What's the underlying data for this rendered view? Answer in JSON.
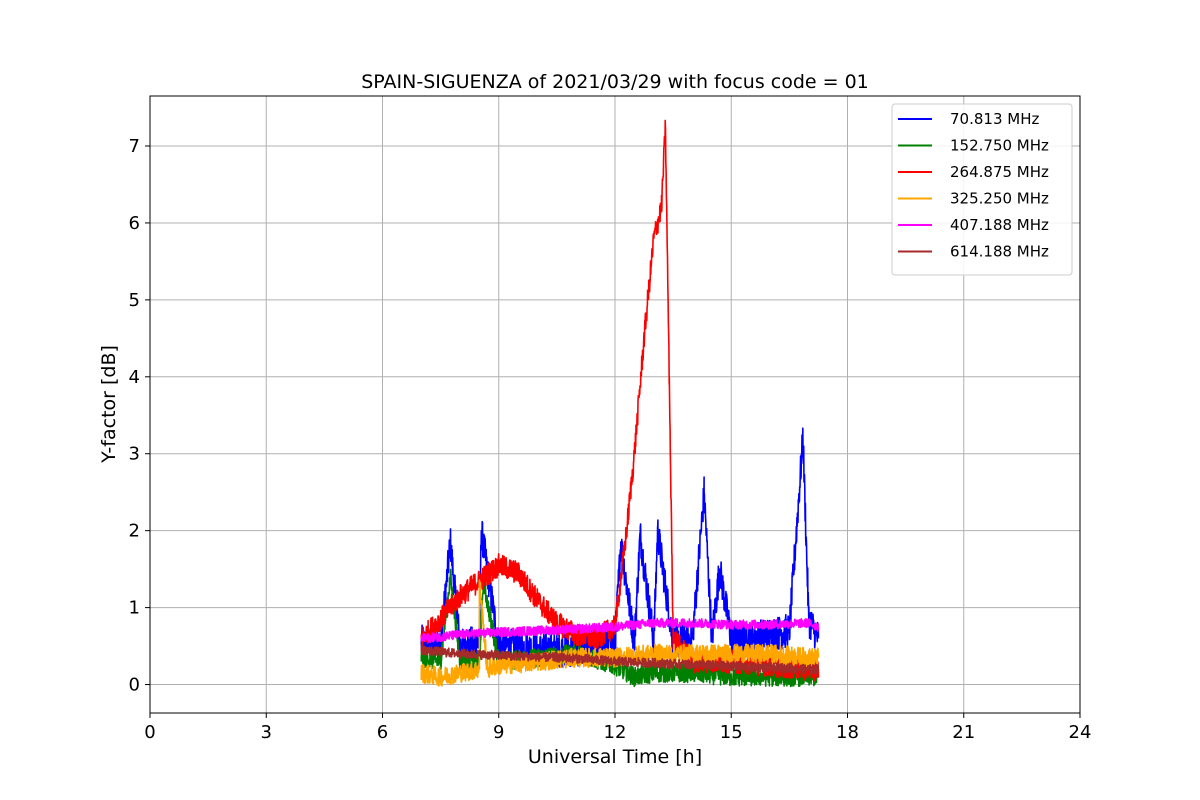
{
  "chart_data": {
    "type": "line",
    "title": "SPAIN-SIGUENZA of 2021/03/29 with focus code = 01",
    "xlabel": "Universal Time [h]",
    "ylabel": "Y-factor [dB]",
    "xlim": [
      0,
      24
    ],
    "ylim": [
      -0.37,
      7.65
    ],
    "xticks": [
      0,
      3,
      6,
      9,
      12,
      15,
      18,
      21,
      24
    ],
    "yticks": [
      0,
      1,
      2,
      3,
      4,
      5,
      6,
      7
    ],
    "grid": true,
    "legend_position": "top-right",
    "x_range_of_data": [
      7.0,
      17.25
    ],
    "series": [
      {
        "name": " 70.813 MHz",
        "color": "#0000ff",
        "points": [
          [
            7.0,
            0.55
          ],
          [
            7.5,
            0.5
          ],
          [
            7.75,
            1.85
          ],
          [
            8.0,
            0.5
          ],
          [
            8.5,
            0.55
          ],
          [
            8.55,
            2.0
          ],
          [
            9.0,
            0.5
          ],
          [
            9.5,
            0.5
          ],
          [
            10.0,
            0.45
          ],
          [
            10.5,
            0.45
          ],
          [
            11.0,
            0.45
          ],
          [
            11.5,
            0.55
          ],
          [
            12.0,
            0.55
          ],
          [
            12.15,
            1.85
          ],
          [
            12.5,
            0.55
          ],
          [
            12.65,
            1.95
          ],
          [
            13.0,
            0.55
          ],
          [
            13.1,
            2.0
          ],
          [
            13.5,
            0.55
          ],
          [
            14.0,
            0.6
          ],
          [
            14.3,
            2.5
          ],
          [
            14.5,
            0.6
          ],
          [
            14.7,
            1.5
          ],
          [
            15.0,
            0.6
          ],
          [
            15.5,
            0.6
          ],
          [
            16.0,
            0.65
          ],
          [
            16.5,
            0.7
          ],
          [
            16.85,
            3.2
          ],
          [
            17.0,
            0.85
          ],
          [
            17.25,
            0.6
          ]
        ],
        "noise": 0.45
      },
      {
        "name": "152.750 MHz",
        "color": "#008000",
        "points": [
          [
            7.0,
            0.35
          ],
          [
            7.5,
            0.3
          ],
          [
            7.75,
            1.4
          ],
          [
            8.0,
            0.3
          ],
          [
            8.5,
            0.3
          ],
          [
            8.6,
            1.35
          ],
          [
            9.0,
            0.3
          ],
          [
            10.0,
            0.35
          ],
          [
            11.0,
            0.4
          ],
          [
            12.0,
            0.25
          ],
          [
            12.5,
            0.1
          ],
          [
            13.0,
            0.15
          ],
          [
            14.0,
            0.15
          ],
          [
            15.0,
            0.1
          ],
          [
            16.0,
            0.1
          ],
          [
            17.0,
            0.1
          ],
          [
            17.25,
            0.1
          ]
        ],
        "noise": 0.25
      },
      {
        "name": "264.875 MHz",
        "color": "#ff0000",
        "points": [
          [
            7.0,
            0.6
          ],
          [
            7.5,
            0.85
          ],
          [
            8.0,
            1.15
          ],
          [
            8.5,
            1.35
          ],
          [
            9.0,
            1.55
          ],
          [
            9.5,
            1.45
          ],
          [
            10.0,
            1.1
          ],
          [
            10.5,
            0.8
          ],
          [
            11.0,
            0.65
          ],
          [
            11.5,
            0.6
          ],
          [
            12.0,
            0.75
          ],
          [
            12.3,
            2.0
          ],
          [
            12.5,
            3.0
          ],
          [
            12.75,
            4.5
          ],
          [
            13.0,
            5.8
          ],
          [
            13.2,
            6.2
          ],
          [
            13.3,
            7.25
          ],
          [
            13.4,
            4.0
          ],
          [
            13.5,
            0.6
          ],
          [
            14.0,
            0.3
          ],
          [
            15.0,
            0.3
          ],
          [
            16.0,
            0.25
          ],
          [
            17.0,
            0.2
          ],
          [
            17.25,
            0.2
          ]
        ],
        "noise": 0.3
      },
      {
        "name": "325.250 MHz",
        "color": "#ffa500",
        "points": [
          [
            7.0,
            0.15
          ],
          [
            7.5,
            0.1
          ],
          [
            8.0,
            0.15
          ],
          [
            8.5,
            0.2
          ],
          [
            8.5,
            1.35
          ],
          [
            8.7,
            0.2
          ],
          [
            9.0,
            0.25
          ],
          [
            10.0,
            0.3
          ],
          [
            11.0,
            0.35
          ],
          [
            12.0,
            0.35
          ],
          [
            13.0,
            0.4
          ],
          [
            14.0,
            0.4
          ],
          [
            15.0,
            0.4
          ],
          [
            16.0,
            0.4
          ],
          [
            17.0,
            0.35
          ],
          [
            17.25,
            0.35
          ]
        ],
        "noise": 0.25
      },
      {
        "name": "407.188 MHz",
        "color": "#ff00ff",
        "points": [
          [
            7.0,
            0.6
          ],
          [
            7.5,
            0.62
          ],
          [
            8.0,
            0.65
          ],
          [
            9.0,
            0.68
          ],
          [
            10.0,
            0.7
          ],
          [
            11.0,
            0.72
          ],
          [
            12.0,
            0.75
          ],
          [
            13.0,
            0.8
          ],
          [
            14.0,
            0.8
          ],
          [
            15.0,
            0.78
          ],
          [
            16.0,
            0.78
          ],
          [
            17.0,
            0.8
          ],
          [
            17.25,
            0.75
          ]
        ],
        "noise": 0.12
      },
      {
        "name": "614.188 MHz",
        "color": "#a52a2a",
        "points": [
          [
            7.0,
            0.45
          ],
          [
            8.0,
            0.4
          ],
          [
            9.0,
            0.38
          ],
          [
            10.0,
            0.36
          ],
          [
            11.0,
            0.34
          ],
          [
            12.0,
            0.3
          ],
          [
            13.0,
            0.28
          ],
          [
            14.0,
            0.26
          ],
          [
            15.0,
            0.24
          ],
          [
            16.0,
            0.22
          ],
          [
            17.0,
            0.2
          ],
          [
            17.25,
            0.2
          ]
        ],
        "noise": 0.12
      }
    ]
  }
}
